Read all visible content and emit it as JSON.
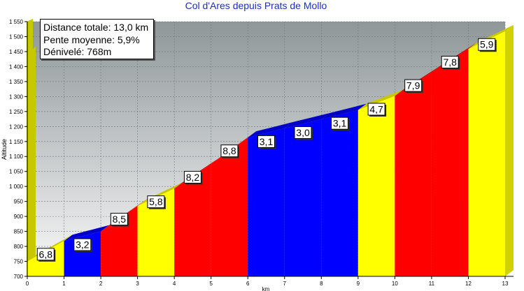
{
  "chart_data": {
    "type": "area",
    "title": "Col d'Ares depuis Prats de Mollo",
    "xlabel": "km",
    "ylabel": "Altitude",
    "xlim": [
      0,
      13
    ],
    "ylim": [
      700,
      1550
    ],
    "x_ticks": [
      0,
      1,
      2,
      3,
      4,
      5,
      6,
      7,
      8,
      9,
      10,
      11,
      12,
      13
    ],
    "y_ticks": [
      "700",
      "750",
      "800",
      "850",
      "900",
      "950",
      "1 000",
      "1 050",
      "1 100",
      "1 150",
      "1 200",
      "1 250",
      "1 300",
      "1 350",
      "1 400",
      "1 450",
      "1 500",
      "1 550"
    ],
    "y_tick_values": [
      700,
      750,
      800,
      850,
      900,
      950,
      1000,
      1050,
      1100,
      1150,
      1200,
      1250,
      1300,
      1350,
      1400,
      1450,
      1500,
      1550
    ],
    "grid": true,
    "segments": [
      {
        "km_start": 0,
        "km_end": 1,
        "alt_start": 750,
        "alt_end": 818,
        "label": "6,8",
        "color": "#ffff00"
      },
      {
        "km_start": 1,
        "km_end": 2,
        "alt_start": 818,
        "alt_end": 850,
        "label": "3,2",
        "color": "#0000ff"
      },
      {
        "km_start": 2,
        "km_end": 3,
        "alt_start": 850,
        "alt_end": 935,
        "label": "8,5",
        "color": "#ff0000"
      },
      {
        "km_start": 3,
        "km_end": 4,
        "alt_start": 935,
        "alt_end": 993,
        "label": "5,8",
        "color": "#ffff00"
      },
      {
        "km_start": 4,
        "km_end": 5,
        "alt_start": 993,
        "alt_end": 1075,
        "label": "8,2",
        "color": "#ff0000"
      },
      {
        "km_start": 5,
        "km_end": 6,
        "alt_start": 1075,
        "alt_end": 1163,
        "label": "8,8",
        "color": "#ff0000"
      },
      {
        "km_start": 6,
        "km_end": 7,
        "alt_start": 1163,
        "alt_end": 1194,
        "label": "3,1",
        "color": "#0000ff"
      },
      {
        "km_start": 7,
        "km_end": 8,
        "alt_start": 1194,
        "alt_end": 1224,
        "label": "3,0",
        "color": "#0000ff"
      },
      {
        "km_start": 8,
        "km_end": 9,
        "alt_start": 1224,
        "alt_end": 1255,
        "label": "3,1",
        "color": "#0000ff"
      },
      {
        "km_start": 9,
        "km_end": 10,
        "alt_start": 1255,
        "alt_end": 1302,
        "label": "4,7",
        "color": "#ffff00"
      },
      {
        "km_start": 10,
        "km_end": 11,
        "alt_start": 1302,
        "alt_end": 1381,
        "label": "7,9",
        "color": "#ff0000"
      },
      {
        "km_start": 11,
        "km_end": 12,
        "alt_start": 1381,
        "alt_end": 1459,
        "label": "7,8",
        "color": "#ff0000"
      },
      {
        "km_start": 12,
        "km_end": 13,
        "alt_start": 1459,
        "alt_end": 1518,
        "label": "5,9",
        "color": "#ffff00"
      }
    ]
  },
  "info_box": {
    "distance": "Distance totale: 13,0 km",
    "pente": "Pente moyenne: 5,9%",
    "denivele": "Dénivelé: 768m"
  },
  "colors": {
    "title": "#1a2ec8",
    "background_top": "#8f9799",
    "background_bottom": "#fafafa",
    "left_wall": "#c8c800"
  }
}
